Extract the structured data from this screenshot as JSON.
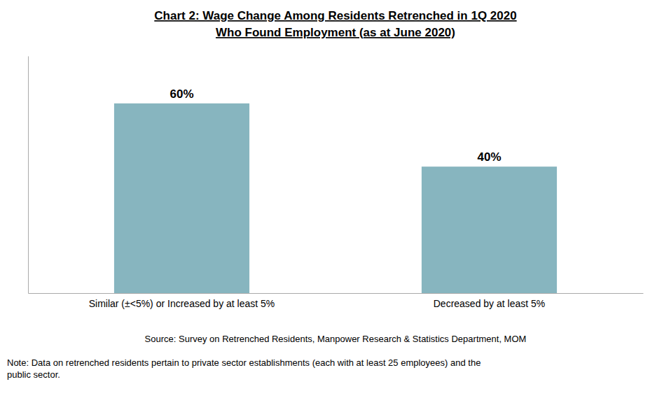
{
  "chart_data": {
    "type": "bar",
    "title": "Chart 2: Wage Change Among Residents Retrenched in 1Q 2020",
    "subtitle": "Who Found Employment (as at June 2020)",
    "categories": [
      "Similar (±<5%) or Increased by at least 5%",
      "Decreased by at least 5%"
    ],
    "values": [
      60,
      40
    ],
    "value_labels": [
      "60%",
      "40%"
    ],
    "color": "#87B5BF",
    "ylim": [
      0,
      75
    ],
    "grid": false,
    "data_labels": true,
    "tick_labels": "x",
    "annotations": [
      "Source: Survey on Retrenched Residents, Manpower Research & Statistics Department, MOM",
      "Note: Data on retrenched residents pertain to private sector establishments (each with at least 25 employees) and the\npublic sector."
    ]
  }
}
